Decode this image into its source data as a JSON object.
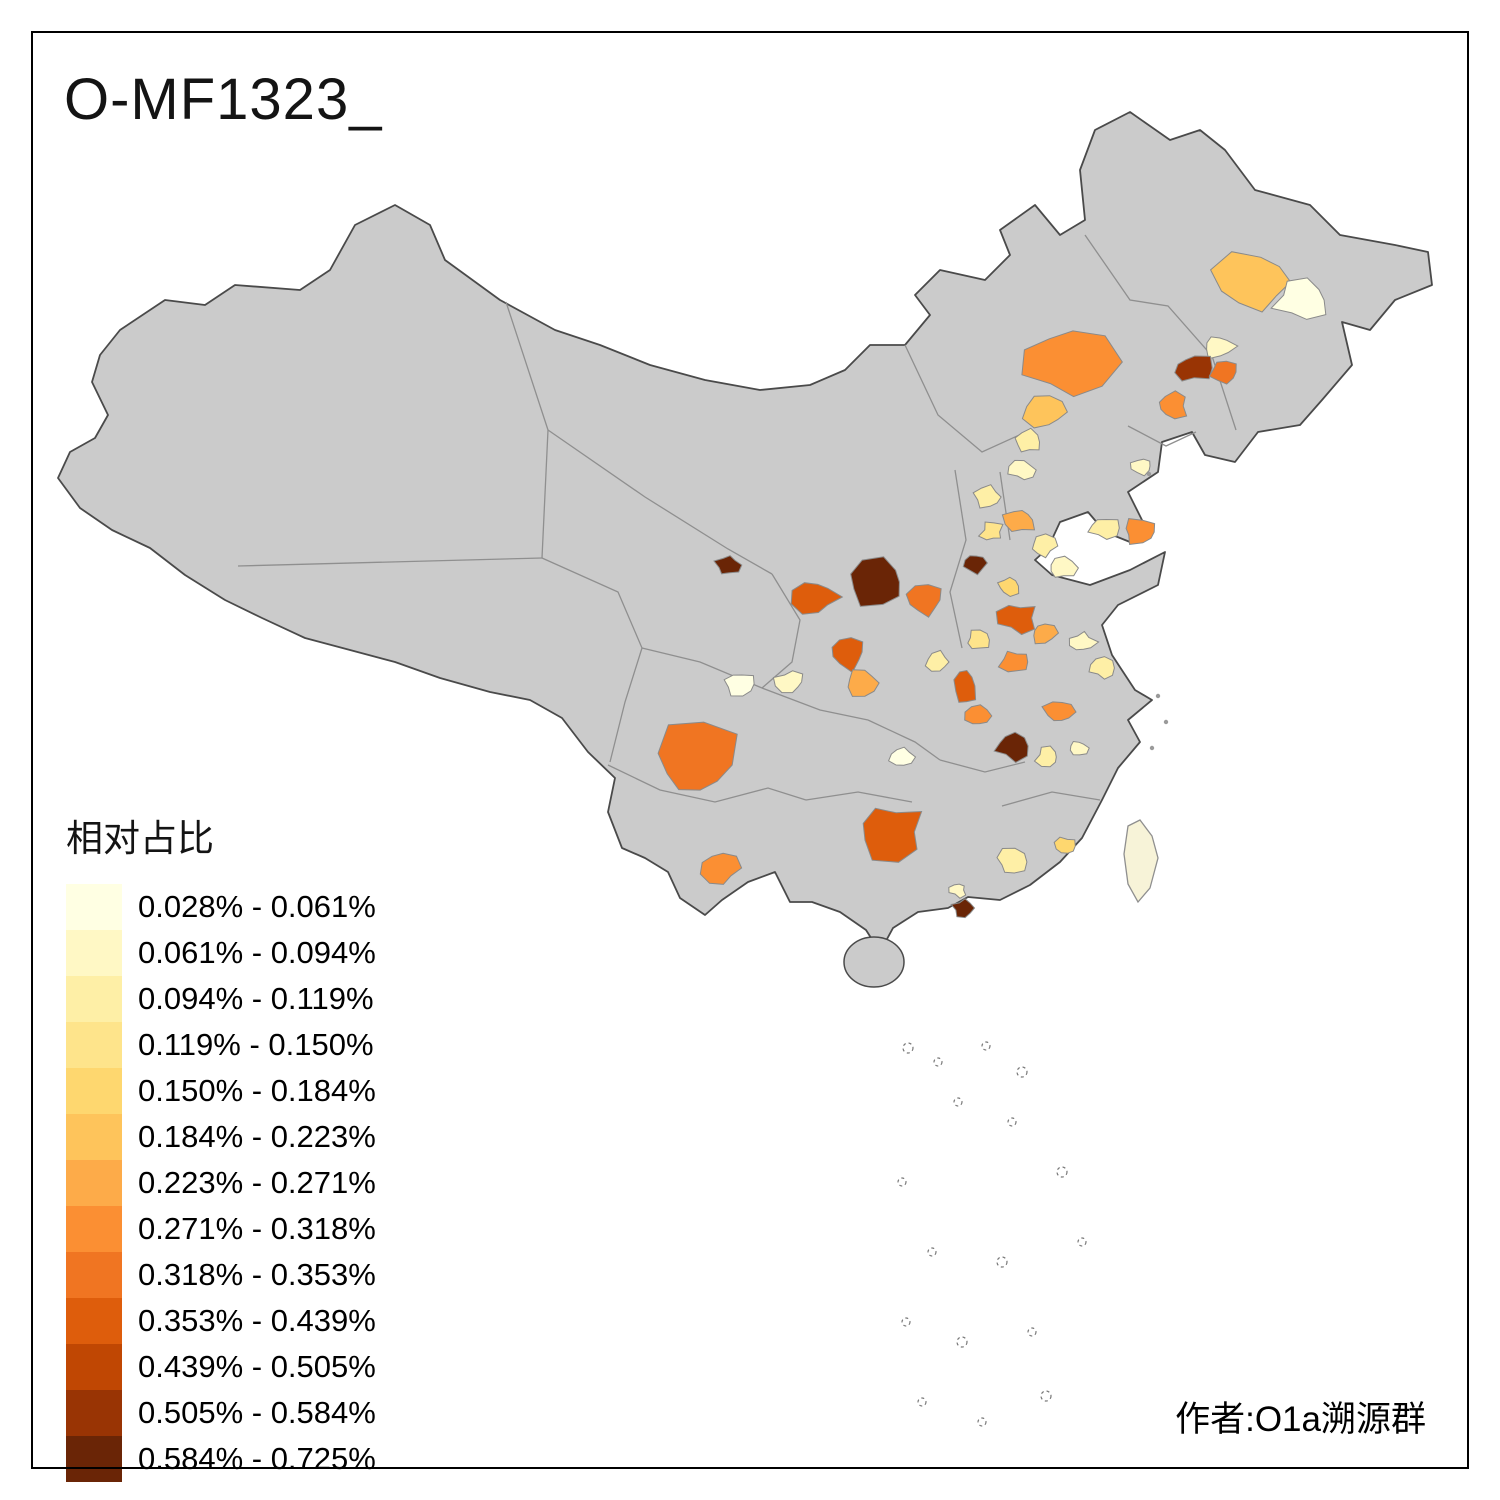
{
  "title": "O-MF1323_",
  "credit": "作者:O1a溯源群",
  "legend": {
    "title": "相对占比",
    "items": [
      {
        "label": "0.028% - 0.061%",
        "color": "#FFFFE3"
      },
      {
        "label": "0.061% - 0.094%",
        "color": "#FFF8C5"
      },
      {
        "label": "0.094% - 0.119%",
        "color": "#FEEFA6"
      },
      {
        "label": "0.119% - 0.150%",
        "color": "#FEE48B"
      },
      {
        "label": "0.150% - 0.184%",
        "color": "#FED76F"
      },
      {
        "label": "0.184% - 0.223%",
        "color": "#FEC45B"
      },
      {
        "label": "0.223% - 0.271%",
        "color": "#FDAB49"
      },
      {
        "label": "0.271% - 0.318%",
        "color": "#FB8F33"
      },
      {
        "label": "0.318% - 0.353%",
        "color": "#F07522"
      },
      {
        "label": "0.353% - 0.439%",
        "color": "#DE5D0C"
      },
      {
        "label": "0.439% - 0.505%",
        "color": "#C04703"
      },
      {
        "label": "0.505% - 0.584%",
        "color": "#993404"
      },
      {
        "label": "0.584% - 0.725%",
        "color": "#6A2506"
      }
    ]
  },
  "map": {
    "land_color": "#CBCBCB",
    "outline_color": "#4A4A4A",
    "province_line_color": "#8F8F8F",
    "region_border_color": "#8A8A8A",
    "island_fill": "#F7F3D8",
    "background": "#FFFFFF"
  }
}
